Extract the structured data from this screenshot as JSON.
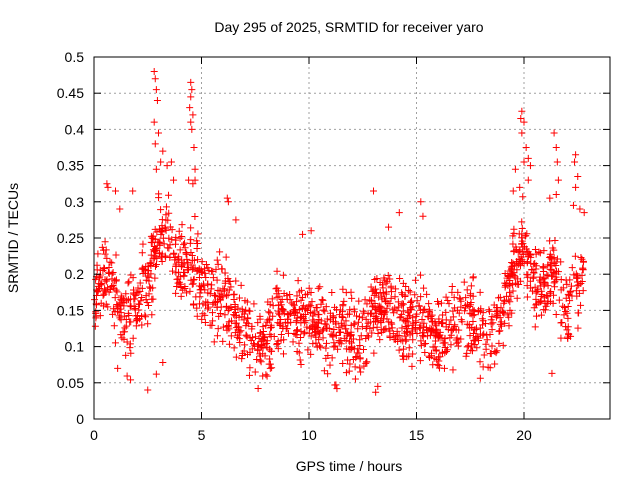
{
  "chart_data": {
    "type": "scatter",
    "title": "Day 295 of 2025, SRMTID for receiver yaro",
    "xlabel": "GPS time / hours",
    "ylabel": "SRMTID / TECUs",
    "xlim": [
      0,
      24
    ],
    "ylim": [
      0,
      0.5
    ],
    "grid": true,
    "marker": "+",
    "series_color": "#ff0000",
    "xticks": [
      {
        "value": 0,
        "label": "0"
      },
      {
        "value": 5,
        "label": "5"
      },
      {
        "value": 10,
        "label": "10"
      },
      {
        "value": 15,
        "label": "15"
      },
      {
        "value": 20,
        "label": "20"
      }
    ],
    "yticks": [
      {
        "value": 0,
        "label": "0"
      },
      {
        "value": 0.05,
        "label": "0.05"
      },
      {
        "value": 0.1,
        "label": "0.1"
      },
      {
        "value": 0.15,
        "label": "0.15"
      },
      {
        "value": 0.2,
        "label": "0.2"
      },
      {
        "value": 0.25,
        "label": "0.25"
      },
      {
        "value": 0.3,
        "label": "0.3"
      },
      {
        "value": 0.35,
        "label": "0.35"
      },
      {
        "value": 0.4,
        "label": "0.4"
      },
      {
        "value": 0.45,
        "label": "0.45"
      },
      {
        "value": 0.5,
        "label": "0.5"
      }
    ],
    "trend": [
      [
        0.0,
        0.17
      ],
      [
        0.5,
        0.2
      ],
      [
        1.0,
        0.17
      ],
      [
        1.5,
        0.13
      ],
      [
        2.0,
        0.16
      ],
      [
        2.5,
        0.19
      ],
      [
        3.0,
        0.26
      ],
      [
        3.5,
        0.25
      ],
      [
        4.0,
        0.2
      ],
      [
        4.5,
        0.22
      ],
      [
        5.0,
        0.19
      ],
      [
        5.5,
        0.17
      ],
      [
        6.0,
        0.17
      ],
      [
        6.5,
        0.15
      ],
      [
        7.0,
        0.12
      ],
      [
        7.5,
        0.1
      ],
      [
        8.0,
        0.11
      ],
      [
        8.5,
        0.14
      ],
      [
        9.0,
        0.15
      ],
      [
        9.5,
        0.14
      ],
      [
        10.0,
        0.14
      ],
      [
        10.5,
        0.13
      ],
      [
        11.0,
        0.12
      ],
      [
        11.5,
        0.12
      ],
      [
        12.0,
        0.11
      ],
      [
        12.5,
        0.12
      ],
      [
        13.0,
        0.15
      ],
      [
        13.5,
        0.15
      ],
      [
        14.0,
        0.14
      ],
      [
        14.5,
        0.13
      ],
      [
        15.0,
        0.14
      ],
      [
        15.5,
        0.13
      ],
      [
        16.0,
        0.11
      ],
      [
        16.5,
        0.12
      ],
      [
        17.0,
        0.13
      ],
      [
        17.5,
        0.14
      ],
      [
        18.0,
        0.12
      ],
      [
        18.5,
        0.12
      ],
      [
        19.0,
        0.15
      ],
      [
        19.5,
        0.2
      ],
      [
        20.0,
        0.24
      ],
      [
        20.5,
        0.18
      ],
      [
        21.0,
        0.19
      ],
      [
        21.5,
        0.19
      ],
      [
        22.0,
        0.16
      ],
      [
        22.5,
        0.18
      ],
      [
        22.8,
        0.2
      ]
    ],
    "spread": 0.038,
    "points_per_hour": 70,
    "peaks": [
      [
        2.8,
        0.48
      ],
      [
        2.85,
        0.47
      ],
      [
        2.9,
        0.455
      ],
      [
        2.95,
        0.44
      ],
      [
        2.8,
        0.41
      ],
      [
        3.0,
        0.395
      ],
      [
        2.85,
        0.38
      ],
      [
        3.2,
        0.37
      ],
      [
        3.1,
        0.355
      ],
      [
        2.9,
        0.345
      ],
      [
        4.5,
        0.465
      ],
      [
        4.55,
        0.455
      ],
      [
        4.5,
        0.445
      ],
      [
        4.45,
        0.43
      ],
      [
        4.6,
        0.42
      ],
      [
        4.5,
        0.41
      ],
      [
        4.55,
        0.4
      ],
      [
        4.65,
        0.375
      ],
      [
        4.7,
        0.345
      ],
      [
        4.4,
        0.33
      ],
      [
        4.6,
        0.325
      ],
      [
        4.7,
        0.33
      ],
      [
        3.6,
        0.355
      ],
      [
        3.4,
        0.35
      ],
      [
        3.7,
        0.33
      ],
      [
        0.6,
        0.325
      ],
      [
        0.65,
        0.32
      ],
      [
        1.0,
        0.315
      ],
      [
        1.8,
        0.315
      ],
      [
        1.2,
        0.29
      ],
      [
        6.2,
        0.305
      ],
      [
        6.25,
        0.3
      ],
      [
        6.6,
        0.275
      ],
      [
        13.0,
        0.315
      ],
      [
        14.2,
        0.285
      ],
      [
        13.7,
        0.265
      ],
      [
        15.2,
        0.3
      ],
      [
        15.3,
        0.28
      ],
      [
        9.7,
        0.255
      ],
      [
        10.1,
        0.26
      ],
      [
        19.9,
        0.425
      ],
      [
        19.85,
        0.415
      ],
      [
        20.0,
        0.41
      ],
      [
        19.9,
        0.395
      ],
      [
        20.1,
        0.375
      ],
      [
        20.2,
        0.36
      ],
      [
        20.0,
        0.355
      ],
      [
        20.3,
        0.35
      ],
      [
        19.6,
        0.345
      ],
      [
        20.2,
        0.33
      ],
      [
        19.8,
        0.32
      ],
      [
        19.5,
        0.315
      ],
      [
        21.4,
        0.395
      ],
      [
        21.5,
        0.375
      ],
      [
        21.55,
        0.355
      ],
      [
        21.6,
        0.33
      ],
      [
        21.5,
        0.31
      ],
      [
        21.2,
        0.305
      ],
      [
        22.4,
        0.365
      ],
      [
        22.35,
        0.355
      ],
      [
        22.5,
        0.335
      ],
      [
        22.4,
        0.32
      ],
      [
        22.3,
        0.295
      ],
      [
        22.6,
        0.29
      ],
      [
        22.8,
        0.285
      ]
    ],
    "lows": [
      [
        2.5,
        0.04
      ],
      [
        2.9,
        0.062
      ],
      [
        3.2,
        0.078
      ],
      [
        1.7,
        0.054
      ],
      [
        1.1,
        0.07
      ],
      [
        11.3,
        0.042
      ],
      [
        11.2,
        0.047
      ],
      [
        13.1,
        0.037
      ],
      [
        13.2,
        0.045
      ],
      [
        7.5,
        0.065
      ],
      [
        16.3,
        0.07
      ],
      [
        12.4,
        0.065
      ],
      [
        21.3,
        0.063
      ],
      [
        18.1,
        0.072
      ],
      [
        8.2,
        0.07
      ]
    ]
  }
}
